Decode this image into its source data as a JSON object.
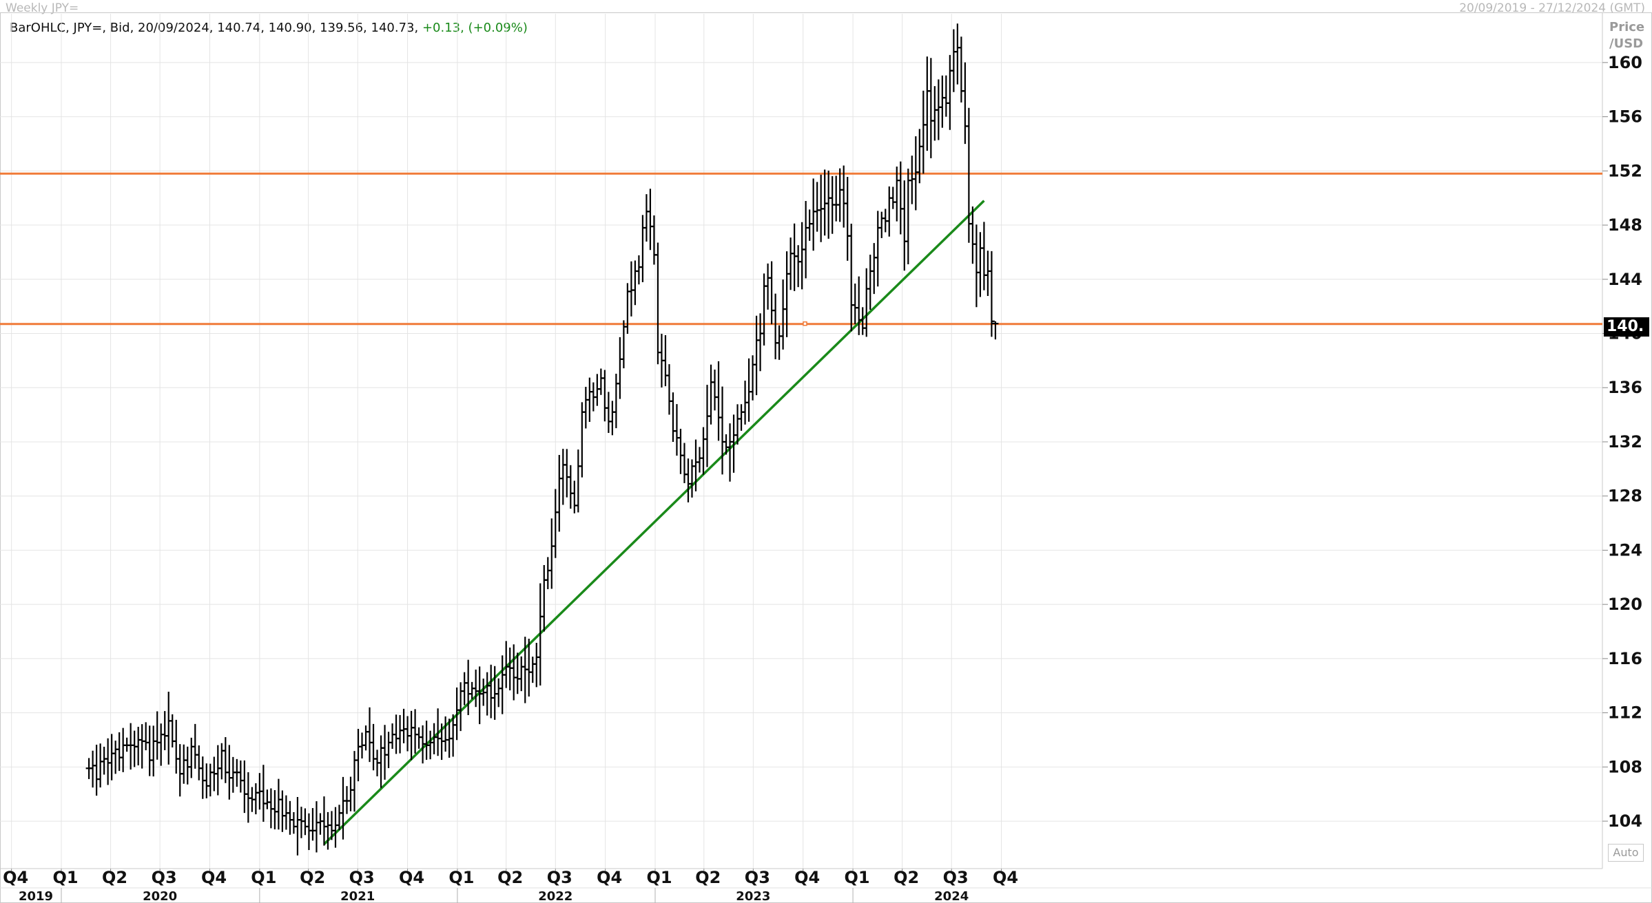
{
  "header": {
    "title": "Weekly JPY=",
    "date_range": "20/09/2019 - 27/12/2024 (GMT)",
    "ohlc_prefix": "BarOHLC, JPY=, Bid, 20/09/2024, 140.74, 140.90, 139.56, 140.73,",
    "ohlc_change": "+0.13, (+0.09%)"
  },
  "axis": {
    "unit_line1": "Price",
    "unit_line2": "/USD",
    "auto_label": "Auto",
    "current_price_tag": "140.",
    "current_price_value": 140.73
  },
  "colors": {
    "bars": "#000000",
    "resistance": "#f07a38",
    "trendline": "#1a8a1a",
    "grid": "#e4e4e4",
    "change_positive": "#1a8a1a"
  },
  "chart_data": {
    "type": "bar",
    "style": "OHLC",
    "frequency": "weekly",
    "series_name": "JPY=",
    "xlim": [
      "2019-09-20",
      "2024-12-27"
    ],
    "ylim": [
      100.6,
      163.6
    ],
    "yticks": [
      104,
      108,
      112,
      116,
      120,
      124,
      128,
      132,
      136,
      140,
      144,
      148,
      152,
      156,
      160
    ],
    "grid": true,
    "quarter_labels": [
      {
        "label": "Q4",
        "date": "2019-10-01"
      },
      {
        "label": "Q1",
        "date": "2020-01-01"
      },
      {
        "label": "Q2",
        "date": "2020-04-01"
      },
      {
        "label": "Q3",
        "date": "2020-07-01"
      },
      {
        "label": "Q4",
        "date": "2020-10-01"
      },
      {
        "label": "Q1",
        "date": "2021-01-01"
      },
      {
        "label": "Q2",
        "date": "2021-04-01"
      },
      {
        "label": "Q3",
        "date": "2021-07-01"
      },
      {
        "label": "Q4",
        "date": "2021-10-01"
      },
      {
        "label": "Q1",
        "date": "2022-01-01"
      },
      {
        "label": "Q2",
        "date": "2022-04-01"
      },
      {
        "label": "Q3",
        "date": "2022-07-01"
      },
      {
        "label": "Q4",
        "date": "2022-10-01"
      },
      {
        "label": "Q1",
        "date": "2023-01-01"
      },
      {
        "label": "Q2",
        "date": "2023-04-01"
      },
      {
        "label": "Q3",
        "date": "2023-07-01"
      },
      {
        "label": "Q4",
        "date": "2023-10-01"
      },
      {
        "label": "Q1",
        "date": "2024-01-01"
      },
      {
        "label": "Q2",
        "date": "2024-04-01"
      },
      {
        "label": "Q3",
        "date": "2024-07-01"
      },
      {
        "label": "Q4",
        "date": "2024-10-01"
      }
    ],
    "year_labels": [
      {
        "label": "2019",
        "date": "2019-11-15"
      },
      {
        "label": "2020",
        "date": "2020-07-01"
      },
      {
        "label": "2021",
        "date": "2021-07-01"
      },
      {
        "label": "2022",
        "date": "2022-07-01"
      },
      {
        "label": "2023",
        "date": "2023-07-01"
      },
      {
        "label": "2024",
        "date": "2024-07-01"
      }
    ],
    "year_boundaries": [
      "2020-01-01",
      "2021-01-01",
      "2022-01-01",
      "2023-01-01",
      "2024-01-01"
    ],
    "horizontal_lines": [
      {
        "price": 151.8
      },
      {
        "price": 140.7
      }
    ],
    "trendline": {
      "start": {
        "date": "2021-04-30",
        "price": 102.3
      },
      "end": {
        "date": "2024-08-30",
        "price": 149.8
      }
    },
    "closes": [
      107.9,
      108.1,
      107.1,
      108.4,
      108.6,
      108.3,
      109.0,
      109.3,
      108.7,
      109.6,
      109.6,
      109.6,
      109.5,
      110.0,
      109.9,
      109.8,
      108.5,
      109.9,
      109.8,
      110.4,
      110.3,
      111.4,
      109.9,
      108.6,
      107.5,
      108.5,
      108.0,
      109.5,
      108.9,
      107.9,
      107.0,
      106.6,
      107.6,
      107.5,
      107.9,
      109.2,
      107.6,
      107.2,
      107.6,
      107.6,
      107.0,
      106.0,
      105.7,
      105.6,
      106.1,
      106.2,
      105.3,
      105.4,
      104.9,
      104.7,
      105.6,
      104.4,
      104.6,
      104.1,
      103.6,
      104.1,
      104.0,
      103.6,
      103.3,
      103.3,
      103.9,
      104.0,
      103.6,
      103.7,
      103.3,
      103.7,
      104.6,
      105.5,
      105.5,
      106.3,
      108.5,
      109.5,
      109.6,
      110.6,
      109.8,
      108.6,
      108.3,
      109.4,
      108.9,
      109.8,
      110.4,
      110.1,
      110.7,
      110.8,
      110.3,
      110.9,
      110.4,
      110.2,
      109.7,
      109.6,
      109.8,
      110.2,
      110.1,
      109.9,
      110.0,
      110.1,
      111.1,
      112.2,
      113.6,
      114.2,
      113.4,
      113.8,
      113.6,
      113.4,
      113.5,
      114.0,
      113.1,
      113.4,
      113.8,
      114.8,
      115.4,
      115.3,
      114.6,
      114.5,
      115.4,
      115.2,
      115.0,
      115.6,
      116.1,
      119.1,
      121.8,
      122.5,
      124.3,
      126.8,
      129.3,
      130.3,
      129.4,
      128.2,
      127.3,
      130.2,
      134.2,
      135.1,
      135.7,
      135.3,
      135.9,
      136.7,
      134.5,
      133.5,
      134.2,
      136.3,
      138.1,
      140.5,
      143.1,
      143.2,
      144.6,
      144.9,
      147.8,
      149.0,
      147.9,
      145.8,
      138.6,
      138.0,
      136.9,
      135.0,
      132.8,
      132.3,
      131.0,
      129.6,
      128.9,
      130.2,
      130.5,
      130.8,
      132.2,
      133.9,
      136.4,
      135.3,
      133.8,
      132.0,
      131.6,
      132.0,
      132.5,
      133.7,
      134.2,
      134.9,
      135.7,
      137.7,
      139.5,
      140.0,
      143.5,
      144.1,
      141.7,
      139.3,
      139.8,
      141.8,
      144.4,
      145.9,
      145.7,
      145.3,
      146.2,
      147.8,
      148.1,
      149.0,
      149.1,
      149.2,
      149.6,
      150.0,
      149.5,
      149.5,
      150.6,
      149.6,
      147.2,
      142.1,
      141.9,
      141.0,
      140.4,
      143.3,
      144.6,
      145.6,
      147.8,
      148.5,
      148.3,
      150.0,
      149.7,
      151.3,
      149.2,
      146.8,
      151.3,
      151.4,
      151.9,
      153.8,
      155.4,
      157.9,
      155.7,
      156.5,
      156.7,
      157.4,
      157.0,
      159.4,
      160.8,
      161.1,
      157.9,
      155.3,
      148.1,
      146.6,
      144.5,
      146.3,
      144.3,
      144.6,
      140.9,
      140.7
    ],
    "last_bar": {
      "date": "2024-09-20",
      "open": 140.74,
      "high": 140.9,
      "low": 139.56,
      "close": 140.73
    }
  }
}
